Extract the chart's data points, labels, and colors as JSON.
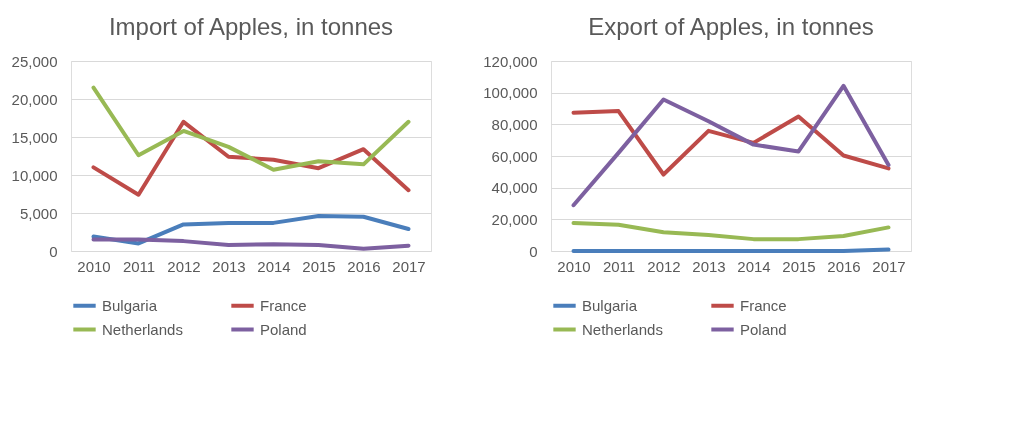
{
  "chart_data": [
    {
      "type": "line",
      "title": "Import of Apples, in tonnes",
      "categories": [
        "2010",
        "2011",
        "2012",
        "2013",
        "2014",
        "2015",
        "2016",
        "2017"
      ],
      "series": [
        {
          "name": "Bulgaria",
          "color": "#4a7ebb",
          "values": [
            1900,
            1000,
            3500,
            3700,
            3700,
            4600,
            4500,
            2900
          ]
        },
        {
          "name": "France",
          "color": "#be4b48",
          "values": [
            11000,
            7400,
            17000,
            12400,
            12000,
            10900,
            13400,
            8000
          ]
        },
        {
          "name": "Netherlands",
          "color": "#98b954",
          "values": [
            21500,
            12600,
            15800,
            13700,
            10700,
            11800,
            11400,
            17000
          ]
        },
        {
          "name": "Poland",
          "color": "#7d60a0",
          "values": [
            1500,
            1500,
            1300,
            800,
            900,
            800,
            300,
            700
          ]
        }
      ],
      "ylim": [
        0,
        25000
      ],
      "yticks": [
        0,
        {
          "value": 5000,
          "label": "5,000"
        },
        {
          "value": 10000,
          "label": "10,000"
        },
        {
          "value": 15000,
          "label": "15,000"
        },
        {
          "value": 20000,
          "label": "20,000"
        },
        {
          "value": 25000,
          "label": "25,000"
        }
      ],
      "grid": "y",
      "legend": "bottom",
      "marker": "none"
    },
    {
      "type": "line",
      "title": "Export of Apples, in tonnes",
      "categories": [
        "2010",
        "2011",
        "2012",
        "2013",
        "2014",
        "2015",
        "2016",
        "2017"
      ],
      "series": [
        {
          "name": "Bulgaria",
          "color": "#4a7ebb",
          "values": [
            0,
            0,
            0,
            0,
            0,
            0,
            0,
            900
          ]
        },
        {
          "name": "France",
          "color": "#be4b48",
          "values": [
            87300,
            88400,
            48300,
            75900,
            68300,
            84900,
            60300,
            52200
          ]
        },
        {
          "name": "Netherlands",
          "color": "#98b954",
          "values": [
            17700,
            16600,
            11900,
            10100,
            7500,
            7500,
            9500,
            14900
          ]
        },
        {
          "name": "Poland",
          "color": "#7d60a0",
          "values": [
            28900,
            62000,
            95700,
            81900,
            67200,
            62900,
            104300,
            54300
          ]
        }
      ],
      "ylim": [
        0,
        120000
      ],
      "yticks": [
        0,
        {
          "value": 20000,
          "label": "20,000"
        },
        {
          "value": 40000,
          "label": "40,000"
        },
        {
          "value": 60000,
          "label": "60,000"
        },
        {
          "value": 80000,
          "label": "80,000"
        },
        {
          "value": 100000,
          "label": "100,000"
        },
        {
          "value": 120000,
          "label": "120,000"
        }
      ],
      "grid": "y",
      "legend": "bottom",
      "marker": "none"
    }
  ]
}
